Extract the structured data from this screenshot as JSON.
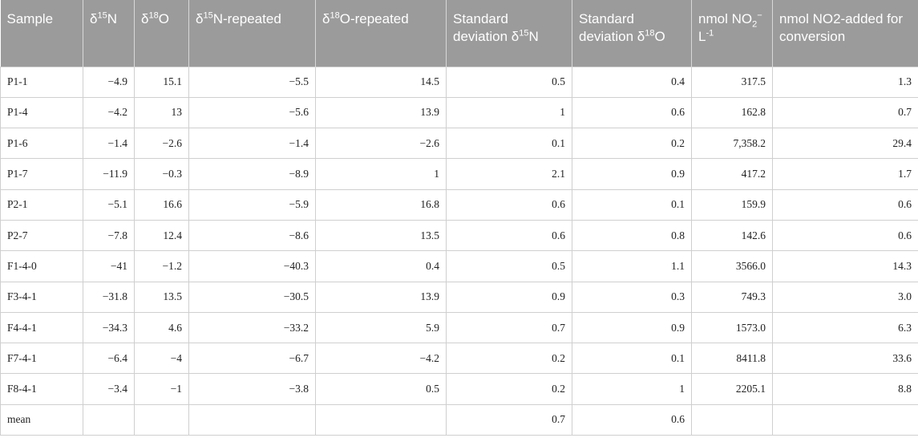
{
  "table": {
    "header": [
      [
        {
          "text": "Sample"
        }
      ],
      [
        {
          "text": "δ"
        },
        {
          "sup": "15"
        },
        {
          "text": "N"
        }
      ],
      [
        {
          "text": "δ"
        },
        {
          "sup": "18"
        },
        {
          "text": "O"
        }
      ],
      [
        {
          "text": "δ"
        },
        {
          "sup": "15"
        },
        {
          "text": "N-repeated"
        }
      ],
      [
        {
          "text": "δ"
        },
        {
          "sup": "18"
        },
        {
          "text": "O-repeated"
        }
      ],
      [
        {
          "text": "Standard deviation δ"
        },
        {
          "sup": "15"
        },
        {
          "text": "N"
        }
      ],
      [
        {
          "text": "Standard deviation δ"
        },
        {
          "sup": "18"
        },
        {
          "text": "O"
        }
      ],
      [
        {
          "text": "nmol NO"
        },
        {
          "sub": "2"
        },
        {
          "sup": "−"
        },
        {
          "text": " L"
        },
        {
          "sup": "-1"
        }
      ],
      [
        {
          "text": "nmol NO2-added for conversion"
        }
      ]
    ],
    "rows": [
      [
        "P1-1",
        "−4.9",
        "15.1",
        "−5.5",
        "14.5",
        "0.5",
        "0.4",
        "317.5",
        "1.3"
      ],
      [
        "P1-4",
        "−4.2",
        "13",
        "−5.6",
        "13.9",
        "1",
        "0.6",
        "162.8",
        "0.7"
      ],
      [
        "P1-6",
        "−1.4",
        "−2.6",
        "−1.4",
        "−2.6",
        "0.1",
        "0.2",
        "7,358.2",
        "29.4"
      ],
      [
        "P1-7",
        "−11.9",
        "−0.3",
        "−8.9",
        "1",
        "2.1",
        "0.9",
        "417.2",
        "1.7"
      ],
      [
        "P2-1",
        "−5.1",
        "16.6",
        "−5.9",
        "16.8",
        "0.6",
        "0.1",
        "159.9",
        "0.6"
      ],
      [
        "P2-7",
        "−7.8",
        "12.4",
        "−8.6",
        "13.5",
        "0.6",
        "0.8",
        "142.6",
        "0.6"
      ],
      [
        "F1-4-0",
        "−41",
        "−1.2",
        "−40.3",
        "0.4",
        "0.5",
        "1.1",
        "3566.0",
        "14.3"
      ],
      [
        "F3-4-1",
        "−31.8",
        "13.5",
        "−30.5",
        "13.9",
        "0.9",
        "0.3",
        "749.3",
        "3.0"
      ],
      [
        "F4-4-1",
        "−34.3",
        "4.6",
        "−33.2",
        "5.9",
        "0.7",
        "0.9",
        "1573.0",
        "6.3"
      ],
      [
        "F7-4-1",
        "−6.4",
        "−4",
        "−6.7",
        "−4.2",
        "0.2",
        "0.1",
        "8411.8",
        "33.6"
      ],
      [
        "F8-4-1",
        "−3.4",
        "−1",
        "−3.8",
        "0.5",
        "0.2",
        "1",
        "2205.1",
        "8.8"
      ],
      [
        "mean",
        null,
        null,
        null,
        null,
        "0.7",
        "0.6",
        null,
        null
      ]
    ]
  }
}
